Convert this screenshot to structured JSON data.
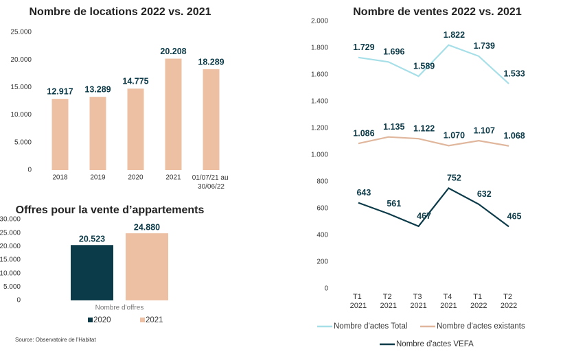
{
  "chart_data": [
    {
      "type": "bar",
      "title": "Nombre de locations 2022 vs. 2021",
      "categories": [
        "2018",
        "2019",
        "2020",
        "2021",
        "01/07/21 au 30/06/22"
      ],
      "values": [
        12917,
        13289,
        14775,
        20208,
        18289
      ],
      "value_labels": [
        "12.917",
        "13.289",
        "14.775",
        "20.208",
        "18.289"
      ],
      "color": "#edc0a3",
      "ylim": [
        0,
        25000
      ],
      "yticks": [
        0,
        {
          "value": 5000,
          "label": "5.000"
        },
        {
          "value": 10000,
          "label": "10.000"
        },
        {
          "value": 15000,
          "label": "15.000"
        },
        {
          "value": 20000,
          "label": "20.000"
        },
        {
          "value": 25000,
          "label": "25.000"
        }
      ]
    },
    {
      "type": "grouped_bar",
      "title": "Offres pour la vente d’appartements",
      "categories": [
        "Nombre d'offres"
      ],
      "series": [
        {
          "name": "2020",
          "color": "#0b3a48",
          "values": [
            20523
          ],
          "value_labels": [
            "20.523"
          ]
        },
        {
          "name": "2021",
          "color": "#edc0a3",
          "values": [
            24880
          ],
          "value_labels": [
            "24.880"
          ]
        }
      ],
      "ylim": [
        0,
        30000
      ],
      "yticks": [
        0,
        {
          "value": 5000,
          "label": "5.000"
        },
        {
          "value": 10000,
          "label": "10.000"
        },
        {
          "value": 15000,
          "label": "15.000"
        },
        {
          "value": 20000,
          "label": "20.000"
        },
        {
          "value": 25000,
          "label": "25.000"
        },
        {
          "value": 30000,
          "label": "30.000"
        }
      ]
    },
    {
      "type": "line",
      "title": "Nombre de ventes 2022 vs. 2021",
      "categories": [
        "T1 2021",
        "T2 2021",
        "T3 2021",
        "T4 2021",
        "T1 2022",
        "T2 2022"
      ],
      "series": [
        {
          "name": "Nombre d'actes Total",
          "color": "#a7dfe8",
          "values": [
            1729,
            1696,
            1589,
            1822,
            1739,
            1533
          ],
          "value_labels": [
            "1.729",
            "1.696",
            "1.589",
            "1.822",
            "1.739",
            "1.533"
          ]
        },
        {
          "name": "Nombre d'actes existants",
          "color": "#e0b79c",
          "values": [
            1086,
            1135,
            1122,
            1070,
            1107,
            1068
          ],
          "value_labels": [
            "1.086",
            "1.135",
            "1.122",
            "1.070",
            "1.107",
            "1.068"
          ]
        },
        {
          "name": "Nombre d'actes VEFA",
          "color": "#0b3a48",
          "values": [
            643,
            561,
            467,
            752,
            632,
            465
          ]
        }
      ],
      "ylim": [
        0,
        2000
      ],
      "yticks": [
        0,
        200,
        400,
        600,
        800,
        {
          "value": 1000,
          "label": "1.000"
        },
        {
          "value": 1200,
          "label": "1.200"
        },
        {
          "value": 1400,
          "label": "1.400"
        },
        {
          "value": 1600,
          "label": "1.600"
        },
        {
          "value": 1800,
          "label": "1.800"
        },
        {
          "value": 2000,
          "label": "2.000"
        }
      ]
    }
  ],
  "source": "Source: Observatoire de l'Habitat"
}
